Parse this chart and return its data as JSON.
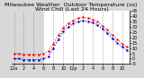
{
  "title": "Milwaukee Weather  Outdoor Temperature (vs)  Wind Chill (Last 24 Hours)",
  "bg_color": "#d8d8d8",
  "plot_bg": "#ffffff",
  "left_bg": "#d8d8d8",
  "grid_color": "#888888",
  "temp_color": "#ff0000",
  "chill_color": "#0000cc",
  "ylim": [
    -5,
    45
  ],
  "yticks": [
    -5,
    0,
    5,
    10,
    15,
    20,
    25,
    30,
    35,
    40,
    45
  ],
  "ylabel_color": "#000000",
  "x_hours": [
    0,
    1,
    2,
    3,
    4,
    5,
    6,
    7,
    8,
    9,
    10,
    11,
    12,
    13,
    14,
    15,
    16,
    17,
    18,
    19,
    20,
    21,
    22,
    23
  ],
  "temp_values": [
    5,
    5,
    4,
    4,
    4,
    4,
    5,
    7,
    14,
    22,
    29,
    33,
    36,
    38,
    39,
    38,
    37,
    35,
    31,
    27,
    22,
    18,
    14,
    11
  ],
  "chill_values": [
    0,
    0,
    -1,
    -1,
    -1,
    -1,
    0,
    2,
    10,
    18,
    26,
    30,
    33,
    35,
    36,
    35,
    34,
    32,
    28,
    24,
    19,
    15,
    11,
    8
  ],
  "xlim": [
    -0.5,
    23.5
  ],
  "night_end": 6.0,
  "xtick_positions": [
    0,
    2,
    4,
    6,
    8,
    10,
    12,
    14,
    16,
    18,
    20,
    22
  ],
  "xtick_labels": [
    "12a",
    "2",
    "4",
    "6",
    "8",
    "10",
    "12p",
    "2",
    "4",
    "6",
    "8",
    "10"
  ],
  "title_fontsize": 4.5,
  "tick_fontsize": 3.5,
  "linewidth": 0.8,
  "markersize": 1.5,
  "figsize": [
    1.6,
    0.87
  ],
  "dpi": 100
}
